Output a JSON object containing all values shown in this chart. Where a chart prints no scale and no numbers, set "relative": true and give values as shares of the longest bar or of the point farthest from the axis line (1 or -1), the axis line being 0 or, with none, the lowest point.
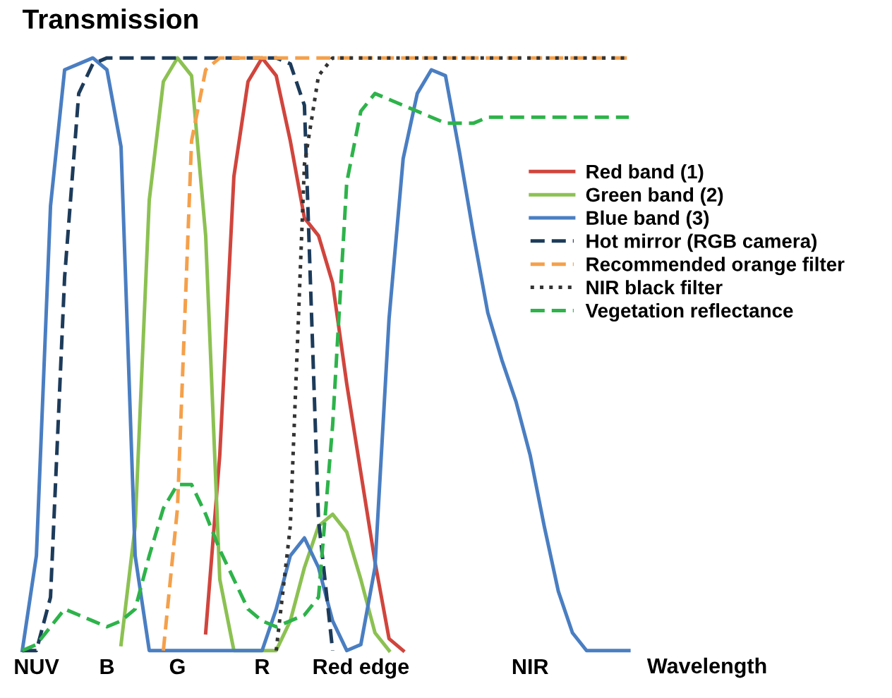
{
  "chart_data": {
    "type": "line",
    "title": "Transmission",
    "xlabel": "Wavelength",
    "relative": true,
    "legend": "right",
    "marker": "none",
    "grid": false,
    "categories": [
      null,
      "NUV",
      null,
      null,
      null,
      null,
      "B",
      null,
      null,
      null,
      null,
      "G",
      null,
      null,
      null,
      null,
      null,
      "R",
      null,
      null,
      null,
      null,
      null,
      null,
      "Red edge",
      null,
      null,
      null,
      null,
      null,
      null,
      null,
      null,
      null,
      null,
      null,
      "NIR",
      null,
      null,
      null,
      null,
      null,
      null,
      null
    ],
    "series": [
      {
        "name": "Red band (1)",
        "color": "#d0453d",
        "line_style": "solid",
        "values": [
          null,
          null,
          null,
          null,
          null,
          null,
          null,
          null,
          null,
          null,
          null,
          null,
          null,
          0.03,
          0.33,
          0.8,
          0.96,
          1.0,
          0.97,
          0.86,
          0.73,
          0.7,
          0.62,
          0.45,
          0.3,
          0.15,
          0.02,
          0,
          null,
          null,
          null,
          null,
          null,
          null,
          null,
          null,
          null,
          null,
          null,
          null,
          null,
          null,
          null,
          null
        ]
      },
      {
        "name": "Green band (2)",
        "color": "#8cc152",
        "line_style": "solid",
        "values": [
          null,
          null,
          null,
          null,
          null,
          null,
          null,
          0.01,
          0.21,
          0.76,
          0.96,
          1.0,
          0.97,
          0.7,
          0.12,
          0,
          0,
          0,
          0,
          0.05,
          0.14,
          0.21,
          0.23,
          0.2,
          0.12,
          0.03,
          0,
          null,
          null,
          null,
          null,
          null,
          null,
          null,
          null,
          null,
          null,
          null,
          null,
          null,
          null,
          null,
          null,
          null
        ]
      },
      {
        "name": "Blue band (3)",
        "color": "#4a7ec2",
        "line_style": "solid",
        "values": [
          0,
          0.16,
          0.75,
          0.98,
          0.99,
          1.0,
          0.98,
          0.85,
          0.16,
          0,
          0,
          0,
          0,
          0,
          0,
          0,
          0,
          0,
          0.07,
          0.16,
          0.19,
          0.14,
          0.05,
          0,
          0.01,
          0.14,
          0.56,
          0.83,
          0.94,
          0.98,
          0.97,
          0.84,
          0.7,
          0.57,
          0.49,
          0.42,
          0.33,
          0.21,
          0.1,
          0.03,
          0,
          0,
          0,
          0
        ]
      },
      {
        "name": "Hot mirror (RGB camera)",
        "color": "#1d3b5a",
        "line_style": "dashed",
        "values": [
          0,
          0,
          0.09,
          0.63,
          0.94,
          0.99,
          1.0,
          1.0,
          1.0,
          1.0,
          1.0,
          1.0,
          1.0,
          1.0,
          1.0,
          1.0,
          1.0,
          1.0,
          1.0,
          0.99,
          0.92,
          0.22,
          0,
          null,
          null,
          null,
          null,
          null,
          null,
          null,
          null,
          null,
          null,
          null,
          null,
          null,
          null,
          null,
          null,
          null,
          null,
          null,
          null,
          null
        ]
      },
      {
        "name": "Recommended orange filter",
        "color": "#f5a04a",
        "line_style": "dashed",
        "values": [
          null,
          null,
          null,
          null,
          null,
          null,
          null,
          null,
          null,
          null,
          0,
          0.24,
          0.86,
          0.98,
          1.0,
          1.0,
          1.0,
          1.0,
          1.0,
          1.0,
          1.0,
          1.0,
          1.0,
          1.0,
          1.0,
          1.0,
          1.0,
          1.0,
          1.0,
          1.0,
          1.0,
          1.0,
          1.0,
          1.0,
          1.0,
          1.0,
          1.0,
          1.0,
          1.0,
          1.0,
          1.0,
          1.0,
          1.0,
          1.0
        ]
      },
      {
        "name": "NIR black filter",
        "color": "#333333",
        "line_style": "dotted",
        "values": [
          null,
          null,
          null,
          null,
          null,
          null,
          null,
          null,
          null,
          null,
          null,
          null,
          null,
          null,
          null,
          null,
          null,
          null,
          0,
          0.21,
          0.82,
          0.97,
          1.0,
          1.0,
          1.0,
          1.0,
          1.0,
          1.0,
          1.0,
          1.0,
          1.0,
          1.0,
          1.0,
          1.0,
          1.0,
          1.0,
          1.0,
          1.0,
          1.0,
          1.0,
          1.0,
          1.0,
          1.0,
          1.0
        ]
      },
      {
        "name": "Vegetation reflectance",
        "color": "#2db34a",
        "line_style": "dashed",
        "values": [
          0,
          0.01,
          0.04,
          0.07,
          0.06,
          0.05,
          0.04,
          0.05,
          0.07,
          0.16,
          0.24,
          0.28,
          0.28,
          0.23,
          0.17,
          0.12,
          0.07,
          0.05,
          0.04,
          0.05,
          0.06,
          0.09,
          0.38,
          0.79,
          0.91,
          0.94,
          0.93,
          0.92,
          0.91,
          0.9,
          0.89,
          0.89,
          0.89,
          0.9,
          0.9,
          0.9,
          0.9,
          0.9,
          0.9,
          0.9,
          0.9,
          0.9,
          0.9,
          0.9
        ]
      }
    ]
  }
}
